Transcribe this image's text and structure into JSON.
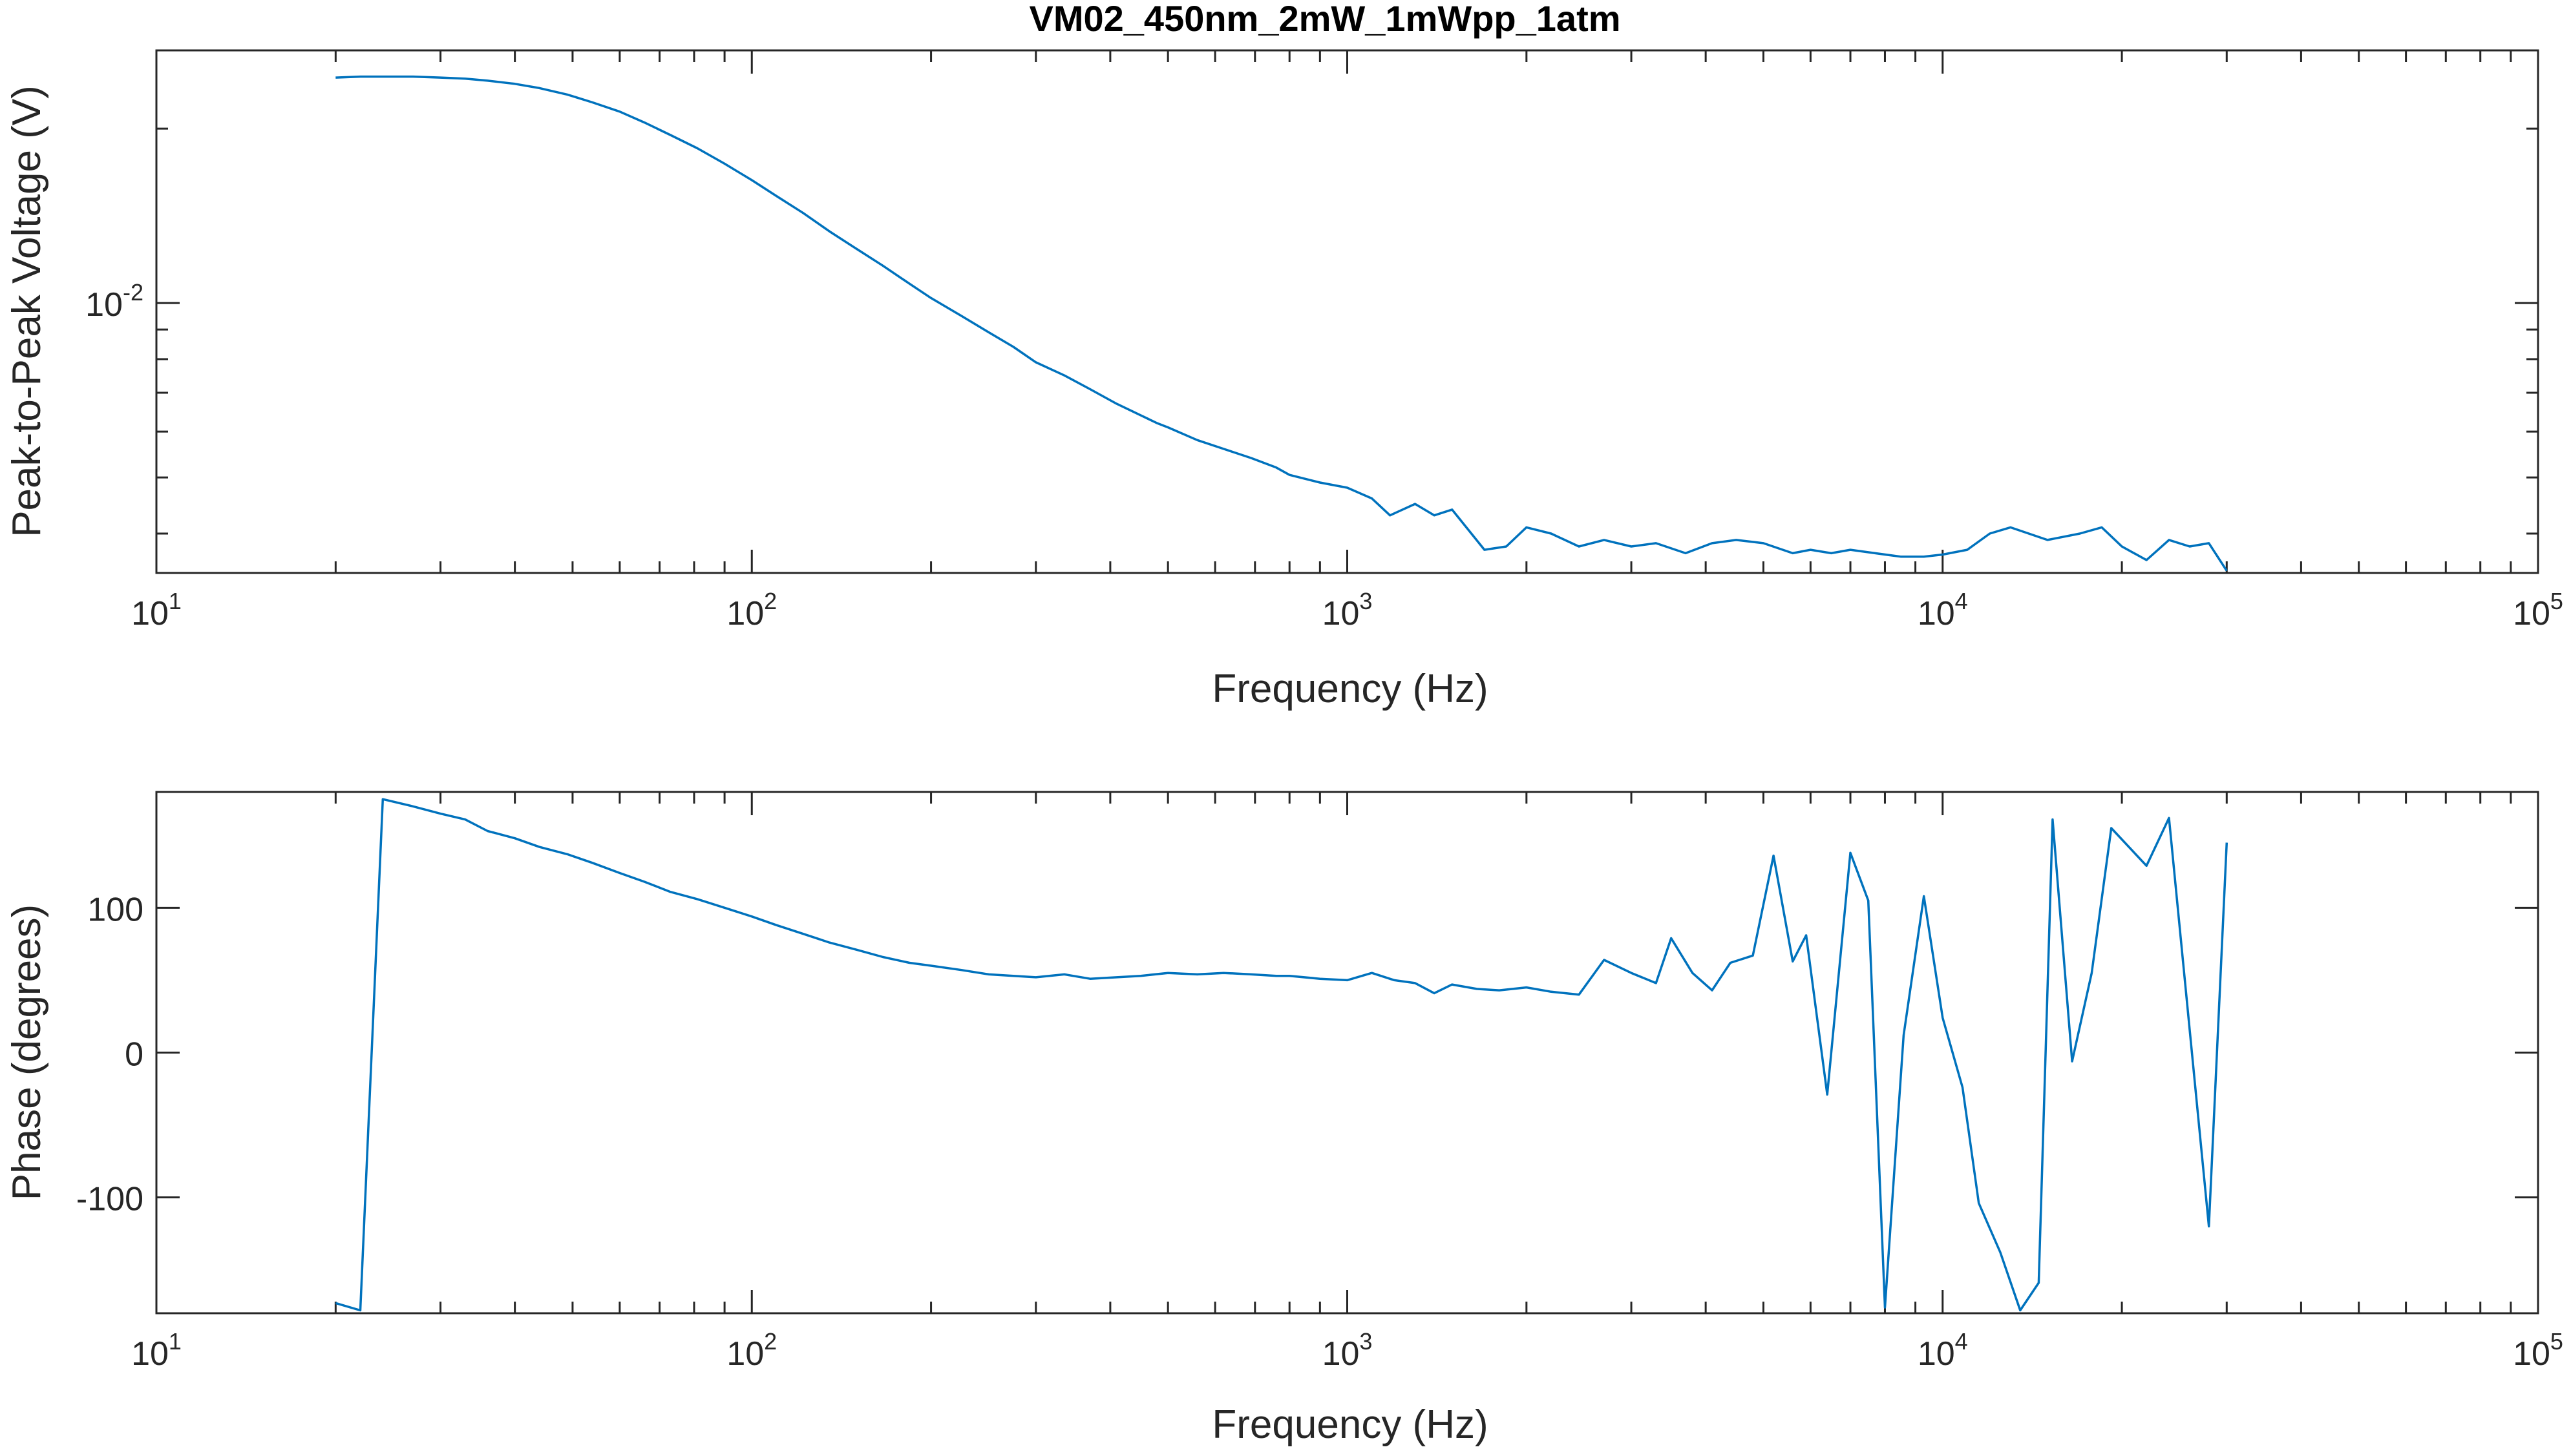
{
  "title": "VM02_450nm_2mW_1mWpp_1atm",
  "colors": {
    "series": "#0072BD",
    "axes": "#262626"
  },
  "chart_data": [
    {
      "type": "line",
      "xlabel": "Frequency (Hz)",
      "ylabel": "Peak-to-Peak Voltage (V)",
      "xscale": "log",
      "yscale": "log",
      "xlim": [
        10,
        100000
      ],
      "ylim": [
        0.00342,
        0.0273
      ],
      "grid": false,
      "xticks": [
        {
          "base": "10",
          "exp": "1",
          "value": 10
        },
        {
          "base": "10",
          "exp": "2",
          "value": 100
        },
        {
          "base": "10",
          "exp": "3",
          "value": 1000
        },
        {
          "base": "10",
          "exp": "4",
          "value": 10000
        },
        {
          "base": "10",
          "exp": "5",
          "value": 100000
        }
      ],
      "yticks": [
        {
          "base": "10",
          "exp": "-2",
          "value": 0.01
        }
      ],
      "x": [
        20,
        22,
        24,
        27,
        30,
        33,
        36,
        40,
        44,
        49,
        54,
        60,
        66,
        73,
        81,
        90,
        100,
        110,
        122,
        135,
        150,
        166,
        184,
        200,
        225,
        250,
        275,
        300,
        335,
        370,
        410,
        450,
        480,
        500,
        560,
        620,
        690,
        760,
        800,
        900,
        1000,
        1100,
        1180,
        1300,
        1400,
        1500,
        1700,
        1850,
        2000,
        2200,
        2450,
        2700,
        3000,
        3300,
        3700,
        4100,
        4500,
        5000,
        5600,
        6000,
        6500,
        7000,
        7700,
        8500,
        9300,
        10000,
        11000,
        12000,
        13000,
        15000,
        17000,
        18500,
        20000,
        22000,
        24000,
        26000,
        28000,
        30000
      ],
      "y": [
        0.0245,
        0.0246,
        0.0246,
        0.0246,
        0.0245,
        0.0244,
        0.0242,
        0.0239,
        0.0235,
        0.0229,
        0.0222,
        0.0214,
        0.0205,
        0.0195,
        0.0185,
        0.0174,
        0.0163,
        0.0153,
        0.0143,
        0.0133,
        0.0124,
        0.0116,
        0.0108,
        0.0102,
        0.0095,
        0.0089,
        0.0084,
        0.0079,
        0.0075,
        0.0071,
        0.0067,
        0.0064,
        0.0062,
        0.0061,
        0.0058,
        0.0056,
        0.0054,
        0.0052,
        0.00505,
        0.0049,
        0.0048,
        0.0046,
        0.0043,
        0.0045,
        0.0043,
        0.0044,
        0.00375,
        0.0038,
        0.0041,
        0.004,
        0.0038,
        0.0039,
        0.0038,
        0.00385,
        0.0037,
        0.00385,
        0.0039,
        0.00385,
        0.0037,
        0.00375,
        0.0037,
        0.00375,
        0.0037,
        0.00365,
        0.00365,
        0.00368,
        0.00375,
        0.004,
        0.0041,
        0.0039,
        0.004,
        0.0041,
        0.0038,
        0.0036,
        0.0039,
        0.0038,
        0.00385,
        0.00345
      ]
    },
    {
      "type": "line",
      "xlabel": "Frequency (Hz)",
      "ylabel": "Phase (degrees)",
      "xscale": "log",
      "yscale": "linear",
      "xlim": [
        10,
        100000
      ],
      "ylim": [
        -180,
        180
      ],
      "grid": false,
      "xticks": [
        {
          "base": "10",
          "exp": "1",
          "value": 10
        },
        {
          "base": "10",
          "exp": "2",
          "value": 100
        },
        {
          "base": "10",
          "exp": "3",
          "value": 1000
        },
        {
          "base": "10",
          "exp": "4",
          "value": 10000
        },
        {
          "base": "10",
          "exp": "5",
          "value": 100000
        }
      ],
      "yticks": [
        {
          "label": "100",
          "value": 100
        },
        {
          "label": "0",
          "value": 0
        },
        {
          "label": "-100",
          "value": -100
        }
      ],
      "x": [
        20,
        22,
        24,
        27,
        30,
        33,
        36,
        40,
        44,
        49,
        54,
        60,
        66,
        73,
        81,
        90,
        100,
        110,
        122,
        135,
        150,
        166,
        184,
        200,
        225,
        250,
        275,
        300,
        335,
        370,
        410,
        450,
        500,
        560,
        620,
        690,
        760,
        800,
        900,
        1000,
        1100,
        1200,
        1300,
        1400,
        1500,
        1650,
        1800,
        2000,
        2200,
        2450,
        2700,
        3000,
        3300,
        3500,
        3800,
        4100,
        4400,
        4800,
        5200,
        5600,
        5900,
        6400,
        7000,
        7500,
        8000,
        8600,
        9300,
        10000,
        10800,
        11500,
        12500,
        13500,
        14500,
        15300,
        16500,
        17800,
        19200,
        22000,
        24000,
        28000,
        30000
      ],
      "y": [
        -173,
        -178,
        175,
        170,
        165,
        161,
        153,
        148,
        142,
        137,
        131,
        124,
        118,
        111,
        106,
        100,
        94,
        88,
        82,
        76,
        71,
        66,
        62,
        60,
        57,
        54,
        53,
        52,
        54,
        51,
        52,
        53,
        55,
        54,
        55,
        54,
        53,
        53,
        51,
        50,
        55,
        50,
        48,
        41,
        47,
        44,
        43,
        45,
        42,
        40,
        64,
        55,
        48,
        79,
        55,
        43,
        62,
        67,
        136,
        63,
        81,
        -29,
        138,
        105,
        -176,
        12,
        108,
        24,
        -24,
        -104,
        -138,
        -178,
        -159,
        161,
        -6,
        55,
        155,
        129,
        162,
        -120,
        145
      ]
    }
  ]
}
